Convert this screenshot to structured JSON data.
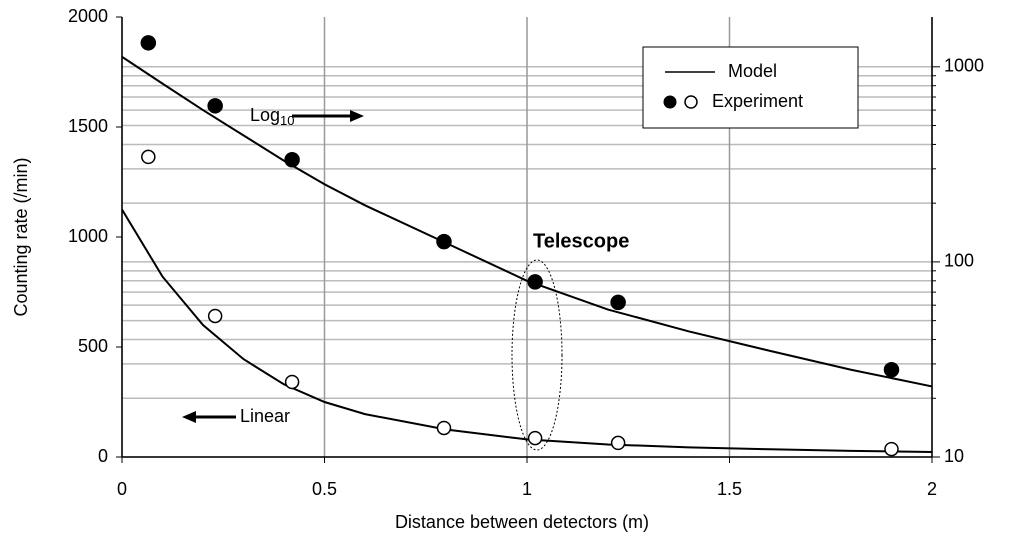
{
  "chart_data": {
    "type": "scatter",
    "xlabel": "Distance between detectors (m)",
    "ylabel": "Counting rate (/min)",
    "xlim": [
      0,
      2
    ],
    "xticks": [
      0,
      0.5,
      1,
      1.5,
      2
    ],
    "ylim": [
      0,
      2000
    ],
    "yticks": [
      0,
      500,
      1000,
      1500,
      2000
    ],
    "y2lim": [
      10,
      1800
    ],
    "y2ticks": [
      10,
      100,
      1000
    ],
    "y2log": true,
    "y2minor": [
      20,
      30,
      40,
      50,
      60,
      70,
      80,
      90,
      200,
      300,
      400,
      500,
      600,
      700,
      800,
      900
    ],
    "grid": true,
    "legend": "upper right",
    "series": [
      {
        "name": "Model",
        "color": "#000000",
        "x": [
          0,
          0.1,
          0.2,
          0.3,
          0.4,
          0.5,
          0.6,
          0.8,
          1.0,
          1.2,
          1.4,
          1.6,
          1.8,
          2.0
        ],
        "values": [
          1125,
          820,
          600,
          445,
          330,
          250,
          195,
          125,
          80,
          57,
          44,
          35,
          28,
          23
        ],
        "y2_values": [
          1125,
          820,
          600,
          445,
          330,
          250,
          195,
          125,
          80,
          57,
          44,
          35,
          28,
          23
        ]
      },
      {
        "name": "Experiment",
        "color": "#000000",
        "x": [
          0.065,
          0.23,
          0.42,
          0.795,
          1.02,
          1.225,
          1.9
        ],
        "values": [
          1364,
          641,
          341,
          132,
          86,
          64,
          36
        ],
        "y2_values": [
          1327,
          631,
          334,
          127,
          79,
          62,
          28
        ]
      }
    ],
    "annotations": {
      "log": "Log",
      "log_sub": "10",
      "linear": "Linear",
      "telescope": "Telescope"
    }
  }
}
